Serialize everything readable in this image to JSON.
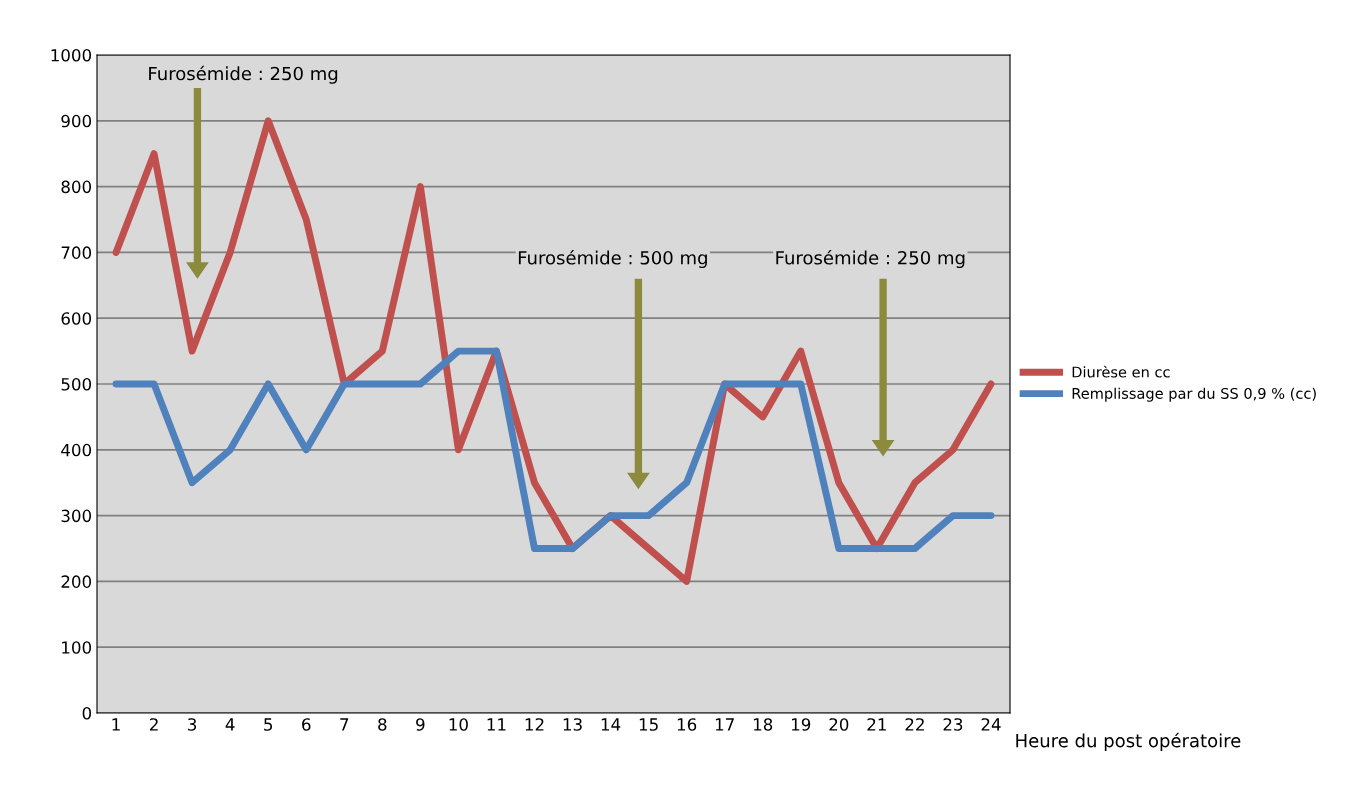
{
  "chart_data": {
    "type": "line",
    "xlabel": "Heure du post opératoire",
    "categories": [
      "1",
      "2",
      "3",
      "4",
      "5",
      "6",
      "7",
      "8",
      "9",
      "10",
      "11",
      "12",
      "13",
      "14",
      "15",
      "16",
      "17",
      "18",
      "19",
      "20",
      "21",
      "22",
      "23",
      "24"
    ],
    "series": [
      {
        "name": "Diurèse en cc",
        "color": "#c0504d",
        "values": [
          700,
          850,
          550,
          700,
          900,
          750,
          500,
          550,
          800,
          400,
          550,
          350,
          250,
          300,
          250,
          200,
          500,
          450,
          550,
          350,
          250,
          350,
          400,
          500
        ]
      },
      {
        "name": "Remplissage par du SS 0,9 % (cc)",
        "color": "#4f81bd",
        "values": [
          500,
          500,
          350,
          400,
          500,
          400,
          500,
          500,
          500,
          550,
          550,
          250,
          250,
          300,
          300,
          350,
          500,
          500,
          500,
          250,
          250,
          250,
          300,
          300
        ]
      }
    ],
    "ylim": [
      0,
      1000
    ],
    "yticks": [
      0,
      100,
      200,
      300,
      400,
      500,
      600,
      700,
      800,
      900,
      1000
    ],
    "grid": "y",
    "legend": "right",
    "marker": "none",
    "line_style": "solid",
    "annotations": [
      "Furosémide : 250 mg",
      "Furosémide : 500 mg",
      "Furosémide : 250 mg"
    ]
  }
}
